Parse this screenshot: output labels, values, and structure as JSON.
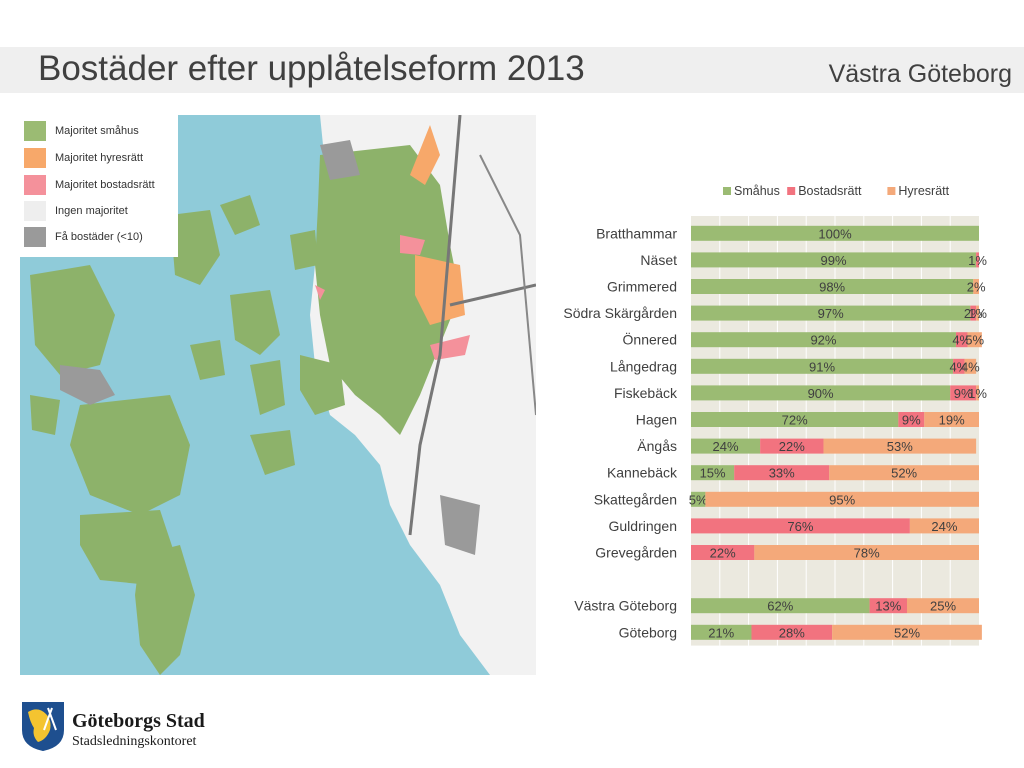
{
  "header": {
    "title": "Bostäder efter upplåtelseform 2013",
    "region": "Västra Göteborg"
  },
  "map": {
    "legend": [
      {
        "label": "Majoritet småhus",
        "color": "#9bbb73"
      },
      {
        "label": "Majoritet hyresrätt",
        "color": "#f7a86a"
      },
      {
        "label": "Majoritet bostadsrätt",
        "color": "#f4919b"
      },
      {
        "label": "Ingen majoritet",
        "color": "#eeeeee"
      },
      {
        "label": "Få bostäder (<10)",
        "color": "#9a9a9a"
      }
    ],
    "water_color": "#8fcbd9",
    "land_color": "#8db26a"
  },
  "chart_data": {
    "type": "bar",
    "orientation": "horizontal",
    "stacked": true,
    "legend_position": "top",
    "xlim": [
      0,
      100
    ],
    "unit": "%",
    "categories": [
      "Bratthammar",
      "Näset",
      "Grimmered",
      "Södra Skärgården",
      "Önnered",
      "Långedrag",
      "Fiskebäck",
      "Hagen",
      "Ängås",
      "Kannebäck",
      "Skattegården",
      "Guldringen",
      "Grevegården",
      "",
      "Västra Göteborg",
      "Göteborg"
    ],
    "series": [
      {
        "name": "Småhus",
        "color": "#9bbb73",
        "values": [
          100,
          99,
          98,
          97,
          92,
          91,
          90,
          72,
          24,
          15,
          5,
          0,
          0,
          null,
          62,
          21
        ],
        "labels": [
          "100%",
          "99%",
          "98%",
          "97%",
          "92%",
          "91%",
          "90%",
          "72%",
          "24%",
          "15%",
          "5%",
          "",
          "",
          "",
          "62%",
          "21%"
        ]
      },
      {
        "name": "Bostadsrätt",
        "color": "#f2737f",
        "values": [
          0,
          1,
          0,
          2,
          4,
          4,
          9,
          9,
          22,
          33,
          0,
          76,
          22,
          null,
          13,
          28
        ],
        "labels": [
          "",
          "1%",
          "",
          "2%",
          "4%",
          "4%",
          "9%",
          "9%",
          "22%",
          "33%",
          "",
          "76%",
          "22%",
          "",
          "13%",
          "28%"
        ]
      },
      {
        "name": "Hyresrätt",
        "color": "#f4a97a",
        "values": [
          0,
          0,
          2,
          1,
          5,
          4,
          1,
          19,
          53,
          52,
          95,
          24,
          78,
          null,
          25,
          52
        ],
        "labels": [
          "",
          "",
          "2%",
          "1%",
          "5%",
          "4%",
          "1%",
          "19%",
          "53%",
          "52%",
          "95%",
          "24%",
          "78%",
          "",
          "25%",
          "52%"
        ]
      }
    ]
  },
  "footer": {
    "org_name": "Göteborgs Stad",
    "org_sub": "Stadsledningskontoret"
  }
}
